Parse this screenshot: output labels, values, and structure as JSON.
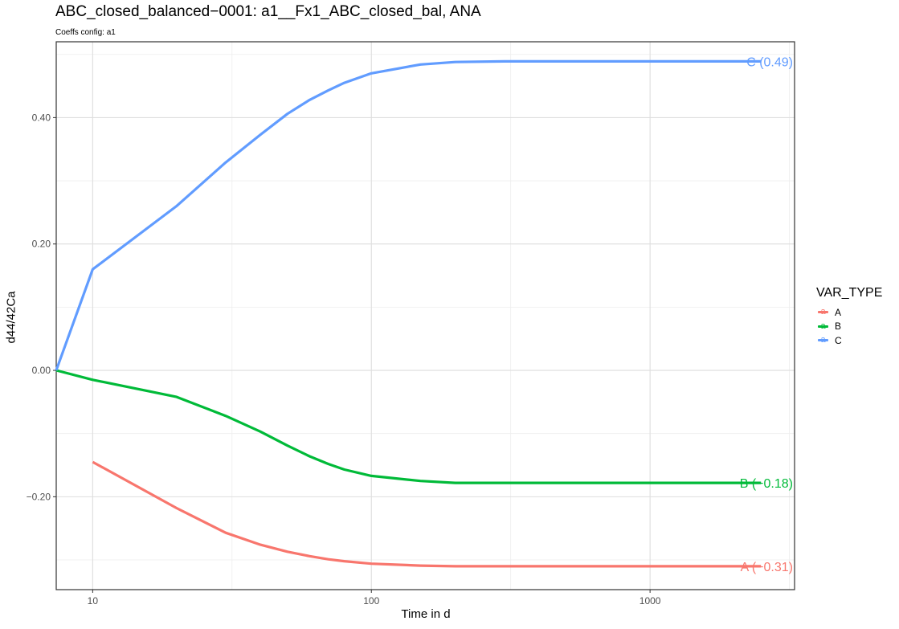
{
  "chart_data": {
    "type": "line",
    "title": "ABC_closed_balanced−0001: a1__Fx1_ABC_closed_bal, ANA",
    "subtitle": "Coeffs config: a1",
    "xlabel": "Time in d",
    "ylabel": "d44/42Ca",
    "x_scale": "log10",
    "xlim": [
      7.4,
      3300
    ],
    "ylim": [
      -0.347,
      0.52
    ],
    "x_ticks": [
      10,
      100,
      1000
    ],
    "x_tick_labels": [
      "10",
      "100",
      "1000"
    ],
    "y_ticks": [
      0.4,
      0.2,
      0.0,
      -0.2
    ],
    "y_tick_labels": [
      "0.40",
      "0.20",
      "0.00",
      "−0.20"
    ],
    "grid": true,
    "legend": {
      "title": "VAR_TYPE",
      "placement": "right",
      "items": [
        "A",
        "B",
        "C"
      ]
    },
    "series": [
      {
        "name": "A",
        "color": "#F8766D",
        "end_label": "A (−0.31)",
        "x": [
          10,
          20,
          30,
          40,
          50,
          60,
          70,
          80,
          100,
          150,
          200,
          300,
          500,
          1000,
          2500
        ],
        "y": [
          -0.145,
          -0.218,
          -0.257,
          -0.276,
          -0.287,
          -0.294,
          -0.299,
          -0.302,
          -0.306,
          -0.309,
          -0.31,
          -0.31,
          -0.31,
          -0.31,
          -0.31
        ]
      },
      {
        "name": "B",
        "color": "#00BA38",
        "end_label": "B (−0.18)",
        "x": [
          7.4,
          10,
          20,
          30,
          40,
          50,
          60,
          70,
          80,
          100,
          150,
          200,
          300,
          500,
          1000,
          2500
        ],
        "y": [
          0.0,
          -0.015,
          -0.042,
          -0.072,
          -0.097,
          -0.119,
          -0.136,
          -0.148,
          -0.157,
          -0.167,
          -0.175,
          -0.178,
          -0.178,
          -0.178,
          -0.178,
          -0.178
        ]
      },
      {
        "name": "C",
        "color": "#619CFF",
        "end_label": "C (0.49)",
        "x": [
          7.4,
          10,
          20,
          30,
          40,
          50,
          60,
          70,
          80,
          100,
          150,
          200,
          300,
          500,
          1000,
          2500
        ],
        "y": [
          0.0,
          0.16,
          0.26,
          0.329,
          0.373,
          0.406,
          0.428,
          0.443,
          0.455,
          0.47,
          0.484,
          0.488,
          0.489,
          0.489,
          0.489,
          0.489
        ]
      }
    ]
  }
}
